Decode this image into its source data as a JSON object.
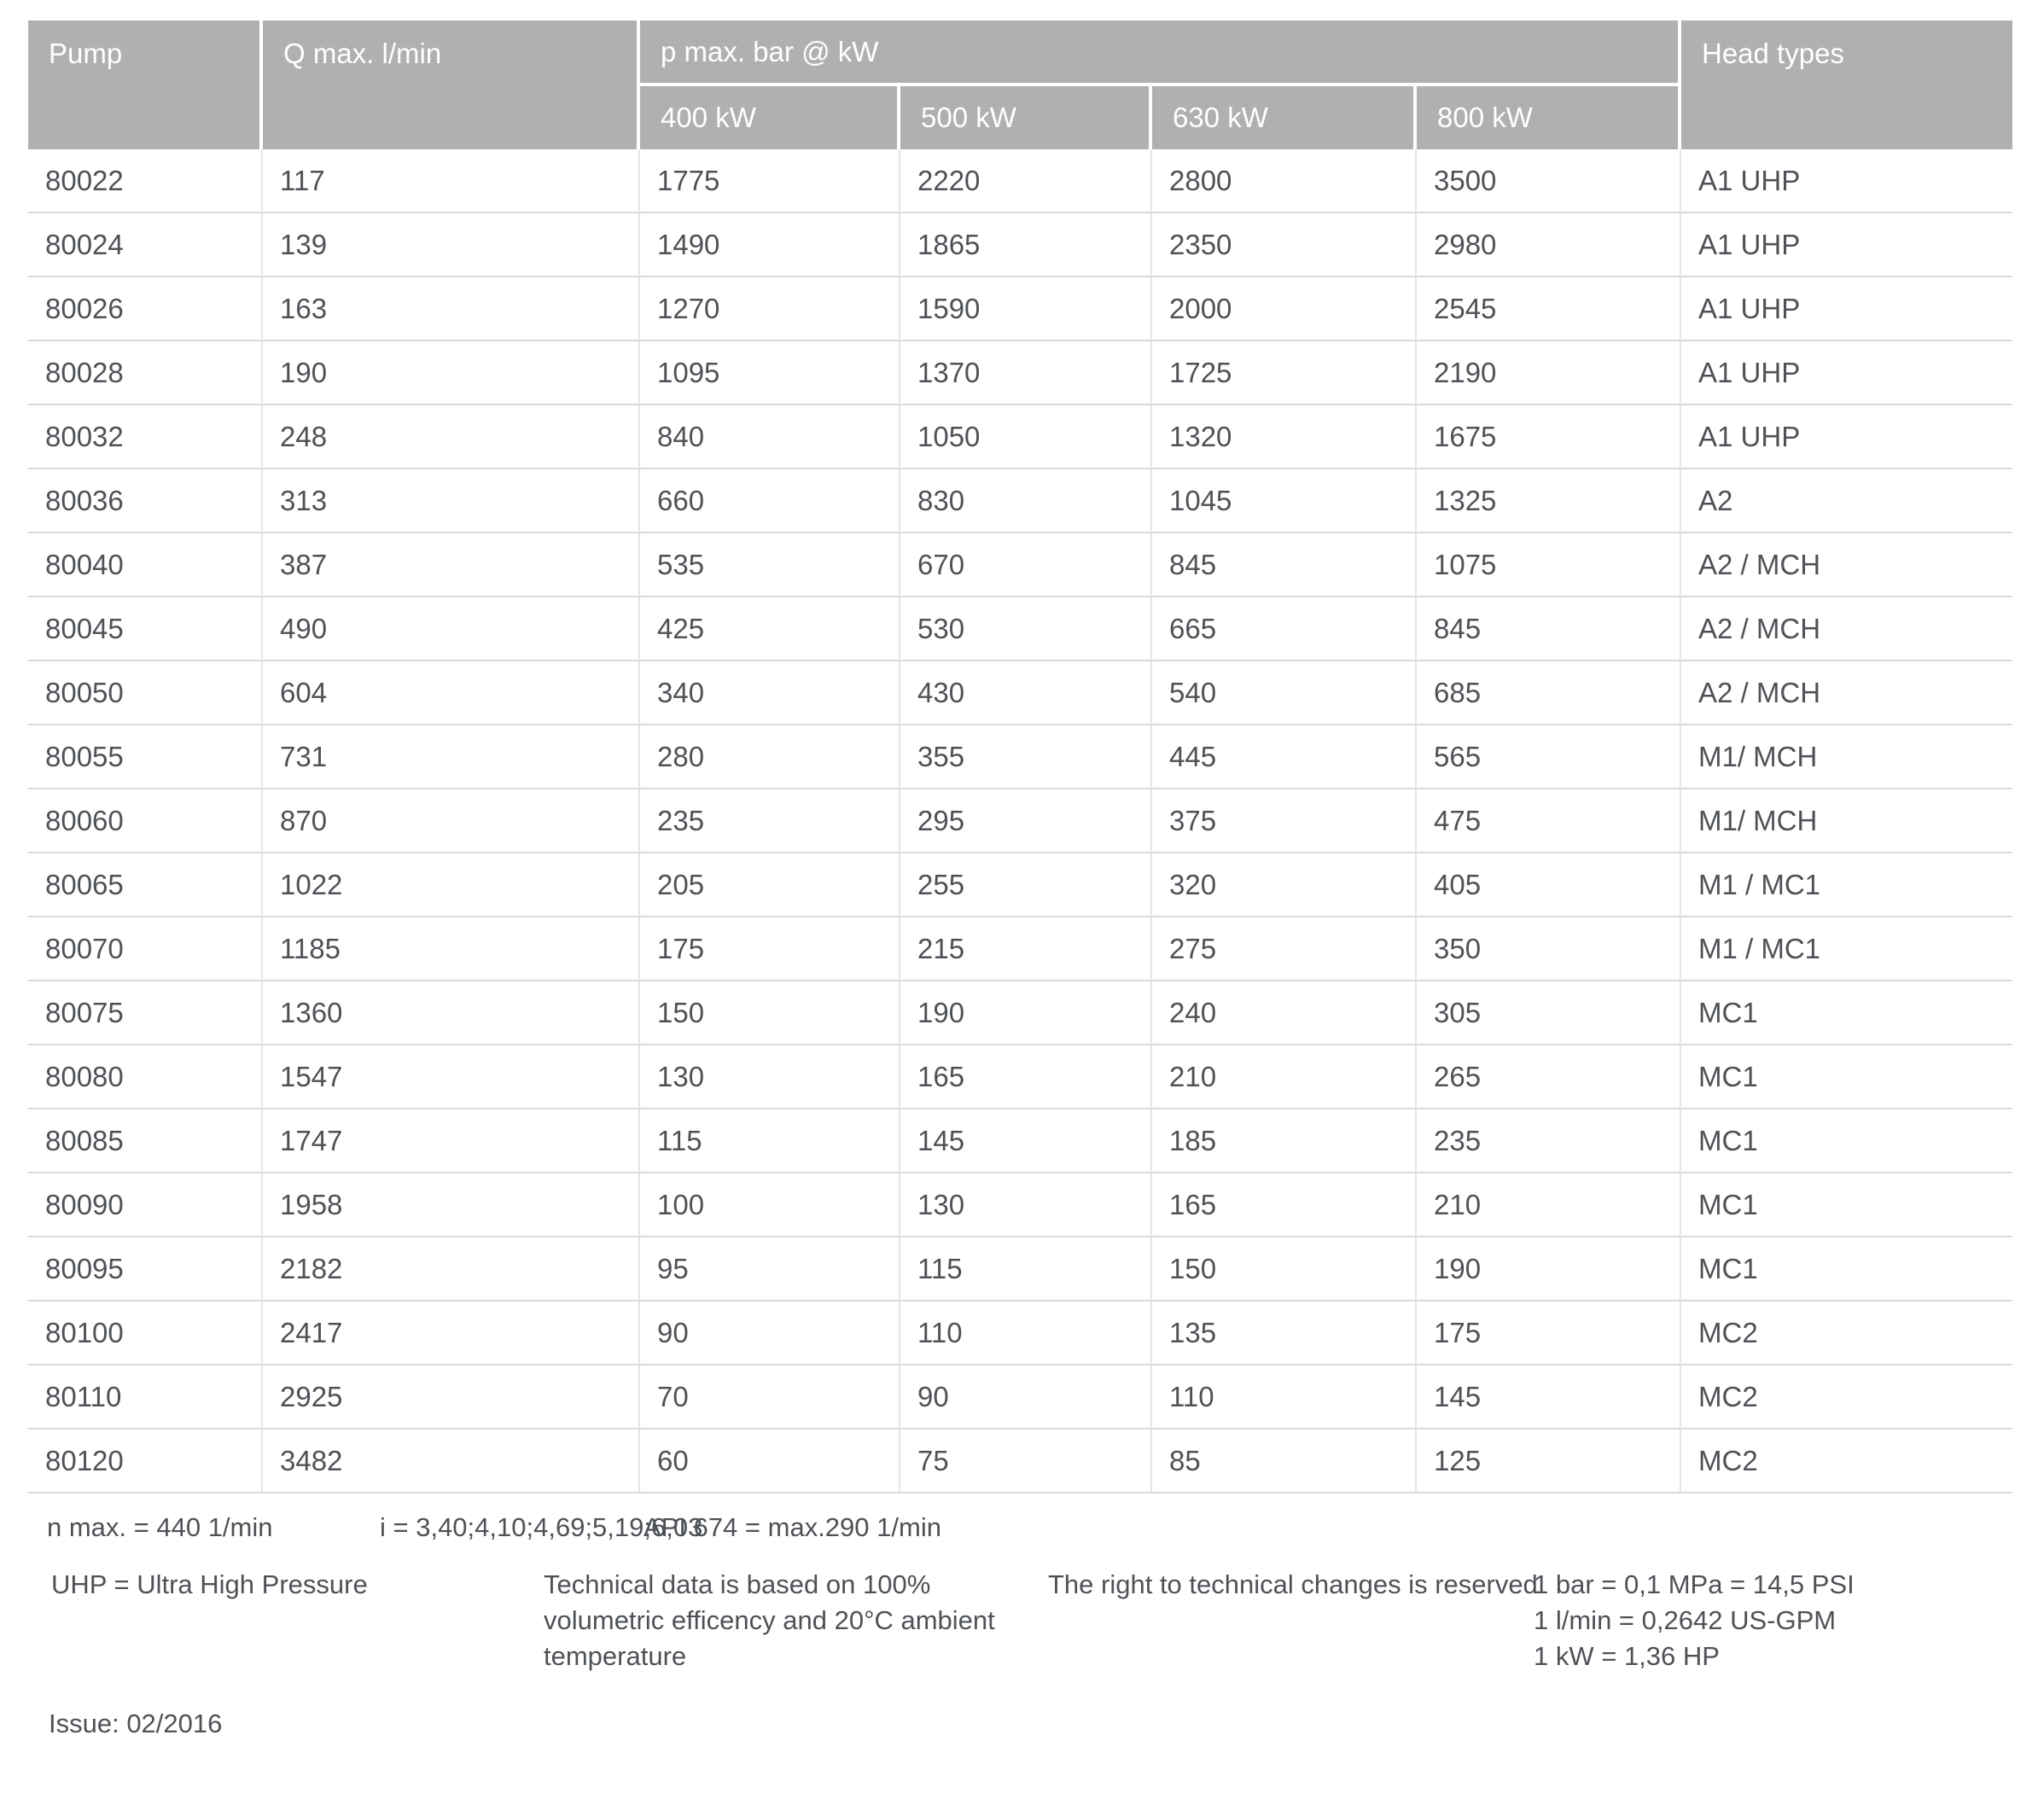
{
  "header": {
    "pump": "Pump",
    "q_max": "Q max. l/min",
    "p_max_group": "p max. bar @ kW",
    "kw_400": "400 kW",
    "kw_500": "500 kW",
    "kw_630": "630 kW",
    "kw_800": "800 kW",
    "head_types": "Head types"
  },
  "rows": [
    {
      "pump": "80022",
      "q_max": "117",
      "p400": "1775",
      "p500": "2220",
      "p630": "2800",
      "p800": "3500",
      "head": "A1 UHP"
    },
    {
      "pump": "80024",
      "q_max": "139",
      "p400": "1490",
      "p500": "1865",
      "p630": "2350",
      "p800": "2980",
      "head": "A1 UHP"
    },
    {
      "pump": "80026",
      "q_max": "163",
      "p400": "1270",
      "p500": "1590",
      "p630": "2000",
      "p800": "2545",
      "head": "A1 UHP"
    },
    {
      "pump": "80028",
      "q_max": "190",
      "p400": "1095",
      "p500": "1370",
      "p630": "1725",
      "p800": "2190",
      "head": "A1 UHP"
    },
    {
      "pump": "80032",
      "q_max": "248",
      "p400": "840",
      "p500": "1050",
      "p630": "1320",
      "p800": "1675",
      "head": "A1 UHP"
    },
    {
      "pump": "80036",
      "q_max": "313",
      "p400": "660",
      "p500": "830",
      "p630": "1045",
      "p800": "1325",
      "head": "A2"
    },
    {
      "pump": "80040",
      "q_max": "387",
      "p400": "535",
      "p500": "670",
      "p630": "845",
      "p800": "1075",
      "head": "A2 / MCH"
    },
    {
      "pump": "80045",
      "q_max": "490",
      "p400": "425",
      "p500": "530",
      "p630": "665",
      "p800": "845",
      "head": "A2 / MCH"
    },
    {
      "pump": "80050",
      "q_max": "604",
      "p400": "340",
      "p500": "430",
      "p630": "540",
      "p800": "685",
      "head": "A2 / MCH"
    },
    {
      "pump": "80055",
      "q_max": "731",
      "p400": "280",
      "p500": "355",
      "p630": "445",
      "p800": "565",
      "head": "M1/ MCH"
    },
    {
      "pump": "80060",
      "q_max": "870",
      "p400": "235",
      "p500": "295",
      "p630": "375",
      "p800": "475",
      "head": "M1/ MCH"
    },
    {
      "pump": "80065",
      "q_max": "1022",
      "p400": "205",
      "p500": "255",
      "p630": "320",
      "p800": "405",
      "head": "M1 / MC1"
    },
    {
      "pump": "80070",
      "q_max": "1185",
      "p400": "175",
      "p500": "215",
      "p630": "275",
      "p800": "350",
      "head": "M1 / MC1"
    },
    {
      "pump": "80075",
      "q_max": "1360",
      "p400": "150",
      "p500": "190",
      "p630": "240",
      "p800": "305",
      "head": "MC1"
    },
    {
      "pump": "80080",
      "q_max": "1547",
      "p400": "130",
      "p500": "165",
      "p630": "210",
      "p800": "265",
      "head": "MC1"
    },
    {
      "pump": "80085",
      "q_max": "1747",
      "p400": "115",
      "p500": "145",
      "p630": "185",
      "p800": "235",
      "head": "MC1"
    },
    {
      "pump": "80090",
      "q_max": "1958",
      "p400": "100",
      "p500": "130",
      "p630": "165",
      "p800": "210",
      "head": "MC1"
    },
    {
      "pump": "80095",
      "q_max": "2182",
      "p400": "95",
      "p500": "115",
      "p630": "150",
      "p800": "190",
      "head": "MC1"
    },
    {
      "pump": "80100",
      "q_max": "2417",
      "p400": "90",
      "p500": "110",
      "p630": "135",
      "p800": "175",
      "head": "MC2"
    },
    {
      "pump": "80110",
      "q_max": "2925",
      "p400": "70",
      "p500": "90",
      "p630": "110",
      "p800": "145",
      "head": "MC2"
    },
    {
      "pump": "80120",
      "q_max": "3482",
      "p400": "60",
      "p500": "75",
      "p630": "85",
      "p800": "125",
      "head": "MC2"
    }
  ],
  "footnotes": {
    "n_max": "n max. = 440 1/min",
    "i_ratios": "i = 3,40;4,10;4,69;5,19;6,03",
    "api": "API 674 = max.290 1/min"
  },
  "footer": {
    "uhp_note": "UHP = Ultra High Pressure",
    "tech_note_lines": [
      "Technical data is based on 100%",
      "volumetric efficency and 20°C ambient",
      "temperature"
    ],
    "rights_note": "The right to technical changes is reserved",
    "conversion_lines": [
      "1 bar = 0,1 MPa = 14,5 PSI",
      "1 l/min = 0,2642 US-GPM",
      "1 kW = 1,36 HP"
    ]
  },
  "issue": "Issue: 02/2016",
  "colors": {
    "header_bg": "#b0b0b0",
    "header_text": "#ffffff",
    "body_text": "#4e5257",
    "row_border": "#d9d9d9",
    "col_border": "#e4e4e4"
  }
}
